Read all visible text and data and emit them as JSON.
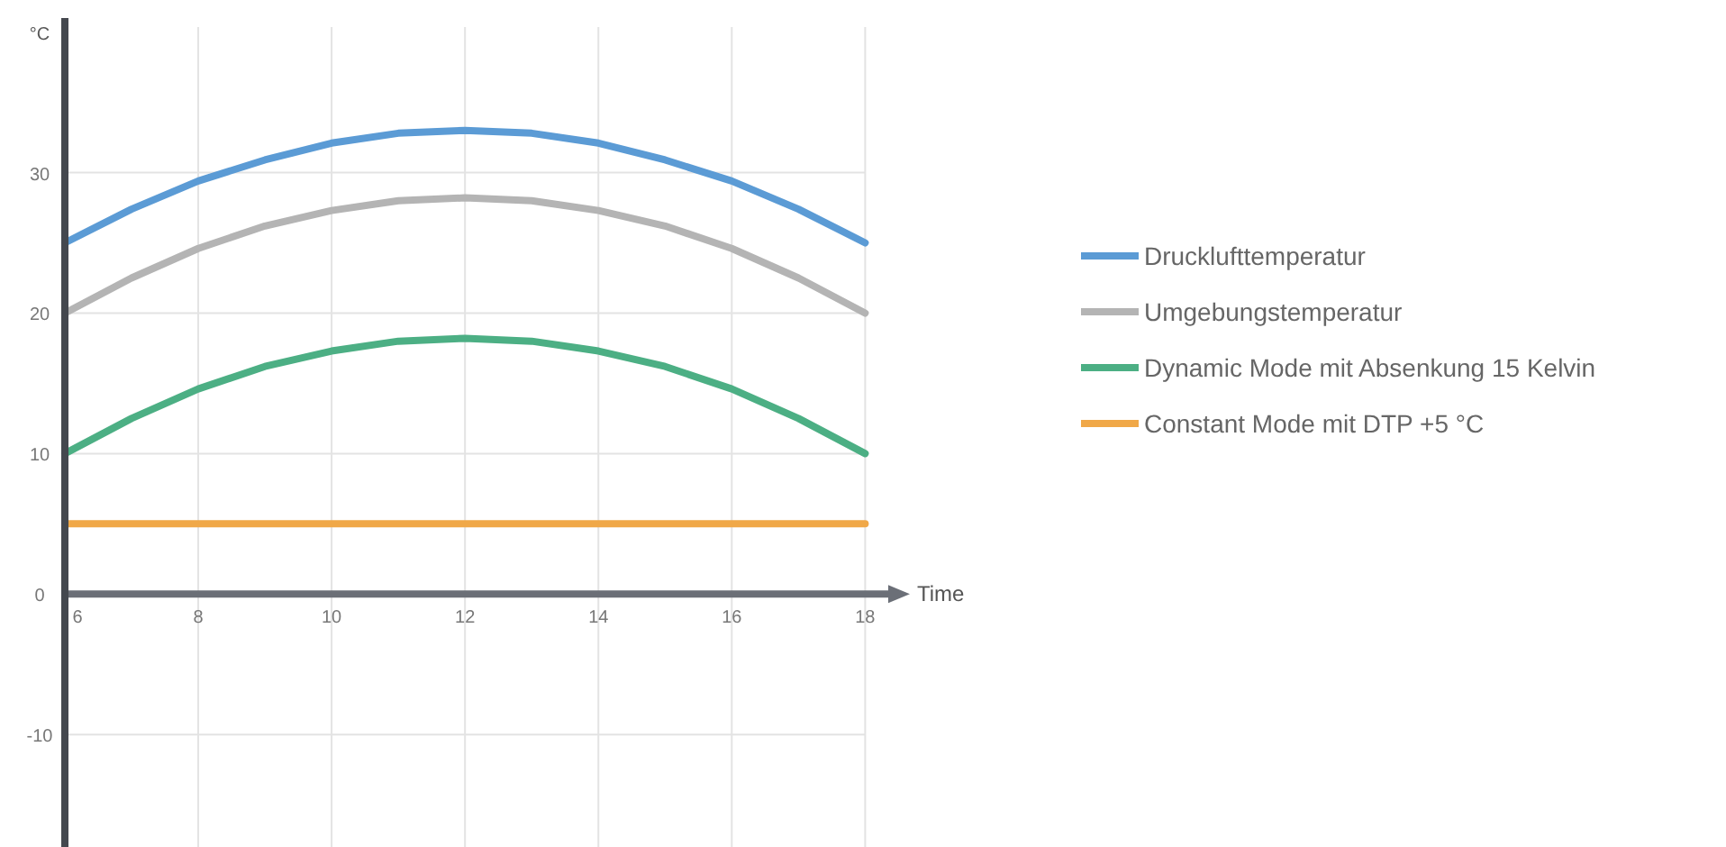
{
  "chart_data": {
    "type": "line",
    "xlabel": "Time",
    "ylabel": "°C",
    "x": [
      6,
      7,
      8,
      9,
      10,
      11,
      12,
      13,
      14,
      15,
      16,
      17,
      18
    ],
    "xlim": [
      6,
      18.4
    ],
    "ylim": [
      -18,
      41
    ],
    "xticks": [
      6,
      8,
      10,
      12,
      14,
      16,
      18
    ],
    "yticks": [
      -10,
      0,
      10,
      20,
      30
    ],
    "grid": true,
    "legend": "right",
    "line_style": "solid",
    "marker": "none",
    "series": [
      {
        "name": "Drucklufttemperatur",
        "color": "#5b9bd5",
        "values": [
          25,
          27.4,
          29.4,
          30.9,
          32.1,
          32.8,
          33,
          32.8,
          32.1,
          30.9,
          29.4,
          27.4,
          25
        ]
      },
      {
        "name": "Umgebungstemperatur",
        "color": "#b4b4b4",
        "values": [
          20,
          22.5,
          24.6,
          26.2,
          27.3,
          28,
          28.2,
          28,
          27.3,
          26.2,
          24.6,
          22.5,
          20
        ]
      },
      {
        "name": "Dynamic Mode mit Absenkung 15 Kelvin",
        "color": "#4caf84",
        "values": [
          10,
          12.5,
          14.6,
          16.2,
          17.3,
          18,
          18.2,
          18,
          17.3,
          16.2,
          14.6,
          12.5,
          10
        ]
      },
      {
        "name": "Constant Mode mit DTP +5 °C",
        "color": "#f0a848",
        "values": [
          5,
          5,
          5,
          5,
          5,
          5,
          5,
          5,
          5,
          5,
          5,
          5,
          5
        ]
      }
    ]
  }
}
